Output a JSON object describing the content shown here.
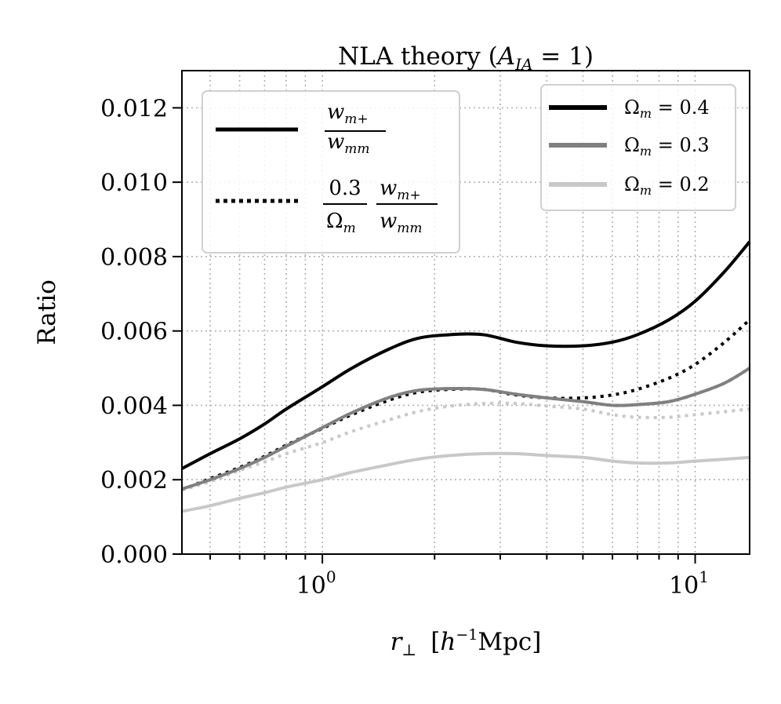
{
  "chart_data": {
    "type": "line",
    "title": "NLA theory (A_IA = 1)",
    "title_parts": {
      "prefix": "NLA theory (",
      "var": "A",
      "sub": "IA",
      "suffix": " = 1)"
    },
    "xlabel": "r⊥ [h⁻¹Mpc]",
    "ylabel": "Ratio",
    "x_scale": "log",
    "xlim": [
      0.42,
      14
    ],
    "ylim": [
      0,
      0.013
    ],
    "x_ticks": [
      {
        "value": 1,
        "label": "10",
        "exp": "0"
      },
      {
        "value": 10,
        "label": "10",
        "exp": "1"
      }
    ],
    "y_ticks": [
      {
        "value": 0.0,
        "label": "0.000"
      },
      {
        "value": 0.002,
        "label": "0.002"
      },
      {
        "value": 0.004,
        "label": "0.004"
      },
      {
        "value": 0.006,
        "label": "0.006"
      },
      {
        "value": 0.008,
        "label": "0.008"
      },
      {
        "value": 0.01,
        "label": "0.010"
      },
      {
        "value": 0.012,
        "label": "0.012"
      }
    ],
    "grid": true,
    "x": [
      0.42,
      0.5,
      0.6,
      0.7,
      0.8,
      1.0,
      1.2,
      1.5,
      1.8,
      2.2,
      2.7,
      3.3,
      4.0,
      5.0,
      6.0,
      7.0,
      8.5,
      10.0,
      12.0,
      14.0
    ],
    "series": [
      {
        "name": "Ω_m = 0.4",
        "omega": "0.4",
        "style": "solid",
        "color": "#000000",
        "values": [
          0.0023,
          0.0027,
          0.0031,
          0.0035,
          0.0039,
          0.0045,
          0.005,
          0.0055,
          0.0058,
          0.0059,
          0.0059,
          0.0057,
          0.0056,
          0.0056,
          0.0057,
          0.0059,
          0.0063,
          0.0068,
          0.0076,
          0.0084
        ]
      },
      {
        "name": "Ω_m = 0.3",
        "omega": "0.3",
        "style": "solid",
        "color": "#808080",
        "values": [
          0.00175,
          0.002,
          0.0023,
          0.0026,
          0.0029,
          0.0034,
          0.0038,
          0.0042,
          0.0044,
          0.00445,
          0.00443,
          0.0043,
          0.0042,
          0.0041,
          0.004,
          0.00402,
          0.0041,
          0.0043,
          0.0046,
          0.005
        ]
      },
      {
        "name": "Ω_m = 0.2",
        "omega": "0.2",
        "style": "solid",
        "color": "#c8c8c8",
        "values": [
          0.00115,
          0.0013,
          0.0015,
          0.00165,
          0.0018,
          0.002,
          0.0022,
          0.0024,
          0.00255,
          0.00265,
          0.0027,
          0.0027,
          0.00265,
          0.0026,
          0.0025,
          0.00245,
          0.00245,
          0.0025,
          0.00255,
          0.0026
        ]
      },
      {
        "name": "0.3/Ω_m × w_m+/w_mm (Ω_m = 0.4)",
        "style": "dotted",
        "color": "#000000",
        "values": [
          0.00173,
          0.00203,
          0.00233,
          0.00263,
          0.00293,
          0.00338,
          0.00375,
          0.00413,
          0.00435,
          0.00443,
          0.00443,
          0.00428,
          0.0042,
          0.0042,
          0.00428,
          0.00443,
          0.00473,
          0.0051,
          0.0057,
          0.0063
        ]
      },
      {
        "name": "0.3/Ω_m × w_m+/w_mm (Ω_m = 0.3)",
        "style": "dotted",
        "color": "#808080",
        "values": [
          0.00175,
          0.002,
          0.0023,
          0.0026,
          0.0029,
          0.0034,
          0.0038,
          0.0042,
          0.0044,
          0.00445,
          0.00443,
          0.0043,
          0.0042,
          0.0041,
          0.004,
          0.00402,
          0.0041,
          0.0043,
          0.0046,
          0.005
        ]
      },
      {
        "name": "0.3/Ω_m × w_m+/w_mm (Ω_m = 0.2)",
        "style": "dotted",
        "color": "#c8c8c8",
        "values": [
          0.00172,
          0.00195,
          0.00225,
          0.00248,
          0.0027,
          0.003,
          0.0033,
          0.0036,
          0.00383,
          0.00398,
          0.00405,
          0.00405,
          0.00398,
          0.0039,
          0.00375,
          0.00368,
          0.00368,
          0.00375,
          0.00383,
          0.0039
        ]
      }
    ],
    "legend_style": {
      "placement": "upper-left",
      "solid_label": {
        "num": "w",
        "num_sub": "m+",
        "den": "w",
        "den_sub": "mm"
      },
      "dotted_label": {
        "coef_num": "0.3",
        "coef_den": "Ω",
        "coef_den_sub": "m",
        "num": "w",
        "num_sub": "m+",
        "den": "w",
        "den_sub": "mm"
      }
    },
    "legend_omega": {
      "placement": "upper-right",
      "entries": [
        {
          "sym": "Ω",
          "sub": "m",
          "eq": " = 0.4",
          "color": "#000000"
        },
        {
          "sym": "Ω",
          "sub": "m",
          "eq": " = 0.3",
          "color": "#808080"
        },
        {
          "sym": "Ω",
          "sub": "m",
          "eq": " = 0.2",
          "color": "#c8c8c8"
        }
      ]
    },
    "xlabel_parts": {
      "var": "r",
      "sub": "⊥",
      "unit_h": "h",
      "unit_exp": "−1",
      "unit": "Mpc"
    }
  }
}
